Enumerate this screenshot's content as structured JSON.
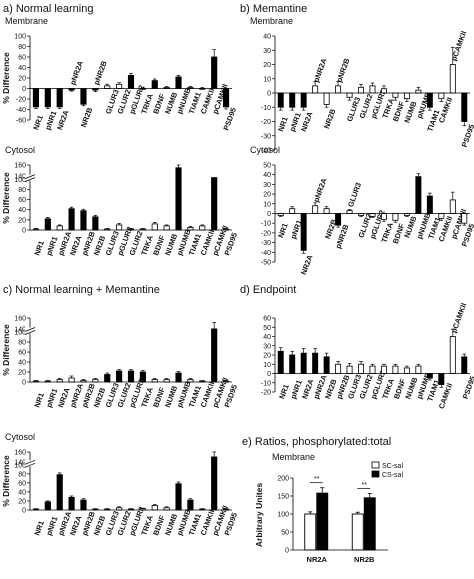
{
  "panels": {
    "a": {
      "title": "a) Normal learning"
    },
    "b": {
      "title": "b) Memantine"
    },
    "c": {
      "title": "c) Normal learning + Memantine"
    },
    "d": {
      "title": "d) Endpoint"
    },
    "e": {
      "title": "e) Ratios, phosphorylated:total"
    }
  },
  "chart_data": [
    {
      "id": "a-membrane",
      "panel": "a",
      "type": "bar",
      "subtitle": "Membrane",
      "ylabel": "% Difference",
      "ylim": [
        -60,
        100
      ],
      "yticks": [
        -60,
        -40,
        -20,
        0,
        20,
        40,
        60,
        80,
        100
      ],
      "categories": [
        "NR1",
        "pNR1",
        "NR2A",
        "pNR2A",
        "NR2B",
        "pNR2B",
        "GLUR3",
        "GLUR2",
        "pGLUR2",
        "TRKA",
        "BDNF",
        "NUMB",
        "pNUMB",
        "TIAM1",
        "CAMKII",
        "pCAMKII",
        "PSD95"
      ],
      "values": [
        -35,
        -35,
        -35,
        -3,
        -30,
        -3,
        5,
        8,
        25,
        0,
        15,
        2,
        22,
        2,
        0,
        60,
        -35
      ],
      "errors": [
        3,
        3,
        3,
        2,
        3,
        3,
        3,
        3,
        4,
        2,
        3,
        2,
        3,
        2,
        2,
        14,
        4
      ],
      "fill": [
        "k",
        "k",
        "k",
        "k",
        "k",
        "k",
        "w",
        "w",
        "k",
        "w",
        "k",
        "w",
        "k",
        "w",
        "w",
        "k",
        "k"
      ],
      "labels_above": [
        3,
        5
      ]
    },
    {
      "id": "a-cytosol",
      "panel": "a",
      "type": "bar",
      "subtitle": "Cytosol",
      "ylabel": "% Difference",
      "ylim": [
        0,
        160
      ],
      "yticks": [
        0,
        20,
        40,
        60,
        80,
        100,
        140,
        160
      ],
      "axis_break_between": [
        100,
        140
      ],
      "categories": [
        "NR1",
        "pNR1",
        "pNR2A",
        "NR2A",
        "pNR2B",
        "NR2B",
        "GLUR3",
        "pGLUR2",
        "GLUR2",
        "TRKA",
        "BDNF",
        "NUMB",
        "pNUMB",
        "TIAM1",
        "CAMKII",
        "pCAMKII",
        "PSD95"
      ],
      "values": [
        2,
        22,
        8,
        42,
        38,
        26,
        2,
        10,
        2,
        2,
        12,
        8,
        155,
        5,
        8,
        125,
        2
      ],
      "errors": [
        1,
        3,
        2,
        3,
        3,
        3,
        1,
        3,
        1,
        1,
        3,
        2,
        5,
        2,
        2,
        14,
        1
      ],
      "fill": [
        "w",
        "k",
        "w",
        "k",
        "k",
        "k",
        "w",
        "w",
        "w",
        "w",
        "w",
        "w",
        "k",
        "w",
        "w",
        "k",
        "w"
      ]
    },
    {
      "id": "b-membrane",
      "panel": "b",
      "type": "bar",
      "subtitle": "Membrane",
      "ylabel": "",
      "ylim": [
        -40,
        40
      ],
      "yticks": [
        -40,
        -30,
        -20,
        -10,
        0,
        10,
        20,
        30,
        40
      ],
      "categories": [
        "NR1",
        "pNR1",
        "NR2A",
        "pNR2A",
        "NR2B",
        "pNR2B",
        "GLUR3",
        "GLUR2",
        "pGLUR2",
        "TRKA",
        "BDNF",
        "NUMB",
        "pNUMB",
        "TIAM1",
        "CAMKII",
        "pCAMKII",
        "PSD95"
      ],
      "values": [
        -10,
        -10,
        -10,
        5,
        -8,
        5,
        -3,
        4,
        5,
        3,
        -3,
        -4,
        2,
        -10,
        -4,
        20,
        -20
      ],
      "errors": [
        2,
        2,
        2,
        3,
        2,
        3,
        2,
        2,
        2,
        2,
        2,
        2,
        2,
        2,
        2,
        12,
        3
      ],
      "fill": [
        "k",
        "k",
        "k",
        "w",
        "w",
        "w",
        "w",
        "w",
        "w",
        "w",
        "w",
        "w",
        "w",
        "k",
        "w",
        "w",
        "k"
      ],
      "labels_above": [
        3,
        5,
        15
      ]
    },
    {
      "id": "b-cytosol",
      "panel": "b",
      "type": "bar",
      "subtitle": "Cytosol",
      "ylabel": "",
      "ylim": [
        -50,
        50
      ],
      "yticks": [
        -50,
        -40,
        -30,
        -20,
        -10,
        0,
        10,
        20,
        30,
        40,
        50
      ],
      "categories": [
        "NR1",
        "pNR1",
        "NR2A",
        "pNR2A",
        "NR2B",
        "pNR2B",
        "GLUR3",
        "GLUR2",
        "pGLUR2",
        "TRKA",
        "BDNF",
        "NUMB",
        "pNUMB",
        "TIAM1",
        "CAMKII",
        "pCAMKII",
        "PSD95"
      ],
      "values": [
        -2,
        5,
        -38,
        8,
        5,
        -12,
        3,
        -2,
        -3,
        -6,
        -7,
        -2,
        38,
        18,
        -5,
        14,
        -10
      ],
      "errors": [
        1,
        2,
        3,
        3,
        2,
        2,
        1,
        1,
        1,
        2,
        2,
        1,
        3,
        3,
        2,
        8,
        2
      ],
      "fill": [
        "w",
        "w",
        "k",
        "w",
        "w",
        "k",
        "w",
        "w",
        "w",
        "w",
        "w",
        "w",
        "k",
        "k",
        "w",
        "w",
        "w"
      ],
      "labels_above": [
        3,
        6
      ]
    },
    {
      "id": "c-membrane",
      "panel": "c",
      "type": "bar",
      "subtitle": "",
      "ylabel": "% Difference",
      "ylim": [
        0,
        160
      ],
      "yticks": [
        0,
        20,
        40,
        60,
        80,
        100,
        140,
        160
      ],
      "axis_break_between": [
        100,
        140
      ],
      "categories": [
        "NR1",
        "pNR1",
        "NR2A",
        "pNR2A",
        "pNR2B",
        "NR2B",
        "GLUR3",
        "GLUR2",
        "pGLUR2",
        "TRKA",
        "BDNF",
        "NUMB",
        "pNUMB",
        "TIAM1",
        "CAMKII",
        "pCAMKII",
        "PSD95"
      ],
      "values": [
        2,
        2,
        5,
        8,
        3,
        5,
        15,
        22,
        22,
        20,
        5,
        5,
        18,
        5,
        2,
        140,
        2
      ],
      "errors": [
        1,
        1,
        2,
        4,
        2,
        2,
        3,
        3,
        3,
        3,
        2,
        2,
        3,
        2,
        1,
        12,
        1
      ],
      "fill": [
        "w",
        "w",
        "w",
        "w",
        "w",
        "w",
        "k",
        "k",
        "k",
        "k",
        "w",
        "w",
        "k",
        "w",
        "w",
        "k",
        "w"
      ]
    },
    {
      "id": "c-cytosol",
      "panel": "c",
      "type": "bar",
      "subtitle": "Cytosol",
      "ylabel": "% Difference",
      "ylim": [
        0,
        160
      ],
      "yticks": [
        0,
        20,
        40,
        60,
        80,
        100,
        140,
        160
      ],
      "axis_break_between": [
        100,
        140
      ],
      "categories": [
        "NR1",
        "pNR1",
        "pNR2A",
        "NR2A",
        "pNR2B",
        "NR2B",
        "GLUR3",
        "GLUR2",
        "pGLUR2",
        "TRKA",
        "BDNF",
        "NUMB",
        "pNUMB",
        "TIAM1",
        "CAMKII",
        "pCAMKII",
        "PSD95"
      ],
      "values": [
        2,
        18,
        78,
        28,
        22,
        2,
        2,
        5,
        2,
        3,
        10,
        5,
        58,
        22,
        2,
        150,
        2
      ],
      "errors": [
        1,
        2,
        4,
        3,
        3,
        1,
        1,
        2,
        1,
        1,
        2,
        2,
        4,
        3,
        1,
        10,
        1
      ],
      "fill": [
        "w",
        "k",
        "k",
        "k",
        "k",
        "w",
        "w",
        "w",
        "w",
        "w",
        "w",
        "w",
        "k",
        "k",
        "w",
        "k",
        "w"
      ]
    },
    {
      "id": "d-endpoint",
      "panel": "d",
      "type": "bar",
      "subtitle": "",
      "ylabel": "",
      "ylim": [
        -20,
        60
      ],
      "yticks": [
        -20,
        -10,
        0,
        10,
        20,
        30,
        40,
        50,
        60
      ],
      "categories": [
        "NR1",
        "pNR1",
        "NR2A",
        "pNR2A",
        "NR2B",
        "pNR2B",
        "GLUR3",
        "GLUR2",
        "pGLUR2",
        "TRKA",
        "BDNF",
        "NUMB",
        "pNUMB",
        "TIAM1",
        "CAMKII",
        "pCAMKII",
        "PSD95"
      ],
      "values": [
        24,
        20,
        22,
        22,
        18,
        10,
        8,
        10,
        8,
        8,
        8,
        6,
        8,
        -5,
        -12,
        40,
        18
      ],
      "errors": [
        4,
        4,
        5,
        5,
        4,
        3,
        3,
        3,
        2,
        2,
        2,
        2,
        2,
        2,
        3,
        8,
        3
      ],
      "fill": [
        "k",
        "k",
        "k",
        "k",
        "k",
        "w",
        "w",
        "w",
        "w",
        "w",
        "w",
        "w",
        "w",
        "k",
        "k",
        "w",
        "k"
      ],
      "labels_above": [
        15
      ]
    },
    {
      "id": "e-ratios",
      "panel": "e",
      "type": "bar",
      "subtitle": "Membrane",
      "ylabel": "Arbitrary Unites",
      "ylim": [
        0,
        200
      ],
      "yticks": [
        0,
        50,
        100,
        150,
        200
      ],
      "categories": [
        "NR2A",
        "NR2B"
      ],
      "series": [
        {
          "name": "SC-sal",
          "values": [
            100,
            100
          ],
          "errors": [
            6,
            5
          ]
        },
        {
          "name": "CS-sal",
          "values": [
            158,
            145
          ],
          "errors": [
            15,
            12
          ]
        }
      ],
      "significance": [
        "**",
        "**"
      ]
    }
  ]
}
